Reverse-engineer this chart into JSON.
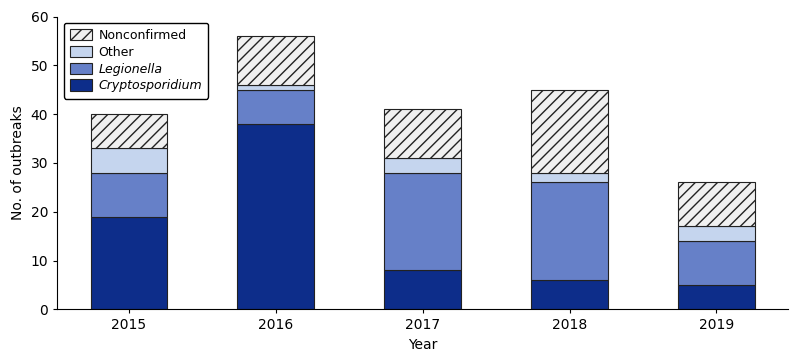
{
  "years": [
    "2015",
    "2016",
    "2017",
    "2018",
    "2019"
  ],
  "cryptosporidium": [
    19,
    38,
    8,
    6,
    5
  ],
  "legionella": [
    9,
    7,
    20,
    20,
    9
  ],
  "other": [
    5,
    1,
    3,
    2,
    3
  ],
  "nonconfirmed": [
    7,
    10,
    10,
    17,
    9
  ],
  "color_crypto": "#0d2d8a",
  "color_legionella": "#6680c8",
  "color_other": "#c5d5ee",
  "color_nonconfirmed_face": "#f0f0f0",
  "ylabel": "No. of outbreaks",
  "xlabel": "Year",
  "ylim": [
    0,
    60
  ],
  "yticks": [
    0,
    10,
    20,
    30,
    40,
    50,
    60
  ],
  "bar_width": 0.52,
  "edgecolor": "#222222",
  "hatch_pattern": "///",
  "legend_fontsize": 9,
  "tick_fontsize": 10,
  "label_fontsize": 10
}
